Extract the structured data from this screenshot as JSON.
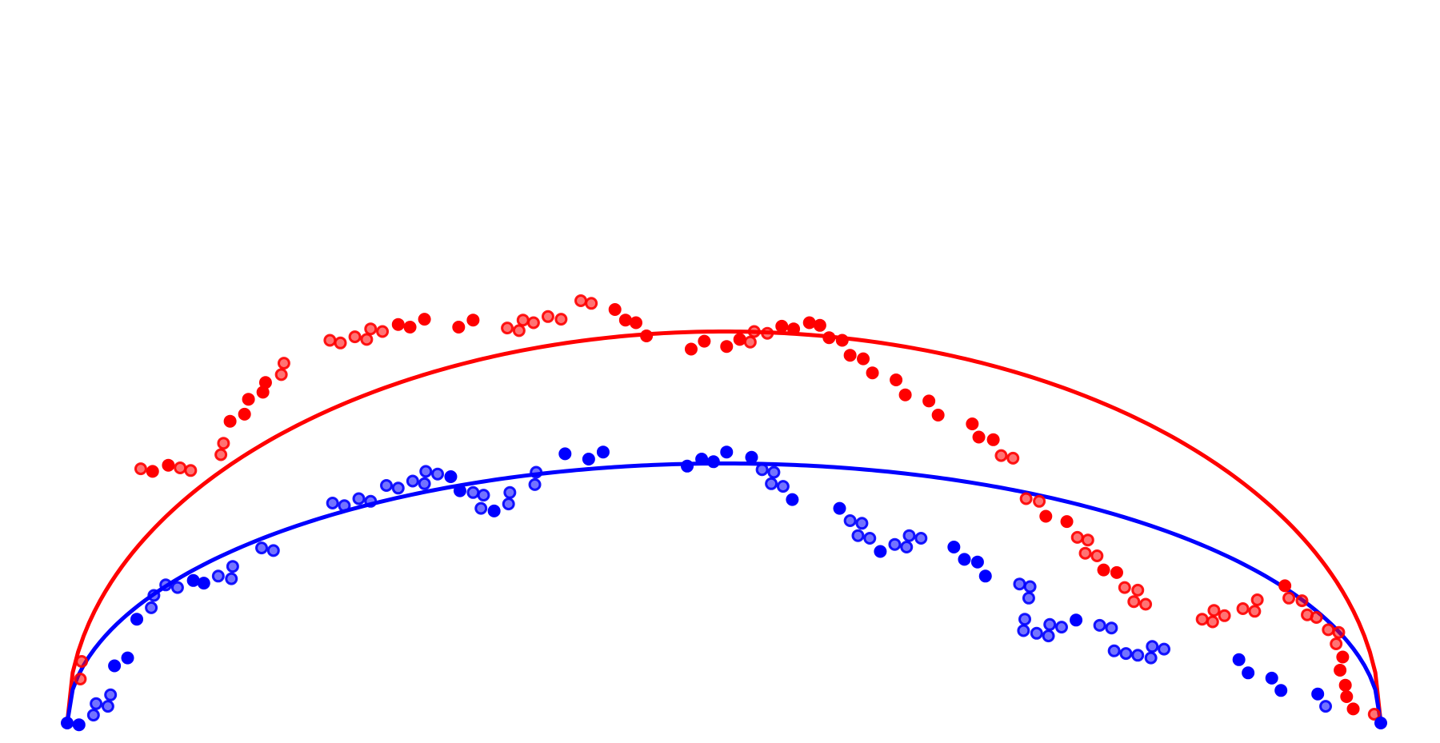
{
  "chart_data": {
    "type": "scatter",
    "title": "",
    "xlabel": "",
    "ylabel": "",
    "xlim": [
      0,
      1
    ],
    "ylim": [
      0,
      0.8
    ],
    "grid": false,
    "axes_visible": false,
    "legend": "none",
    "series": [
      {
        "color": "#ff0000",
        "curve_peak": 0.445,
        "points": [
          {
            "x": 0.011,
            "y": 0.07,
            "hollow": true
          },
          {
            "x": 0.01,
            "y": 0.05,
            "hollow": true
          },
          {
            "x": 0.056,
            "y": 0.289,
            "hollow": true
          },
          {
            "x": 0.065,
            "y": 0.286,
            "hollow": false
          },
          {
            "x": 0.077,
            "y": 0.293,
            "hollow": false
          },
          {
            "x": 0.086,
            "y": 0.29,
            "hollow": true
          },
          {
            "x": 0.094,
            "y": 0.287,
            "hollow": true
          },
          {
            "x": 0.117,
            "y": 0.305,
            "hollow": true
          },
          {
            "x": 0.119,
            "y": 0.318,
            "hollow": true
          },
          {
            "x": 0.124,
            "y": 0.343,
            "hollow": false
          },
          {
            "x": 0.135,
            "y": 0.351,
            "hollow": false
          },
          {
            "x": 0.138,
            "y": 0.368,
            "hollow": false
          },
          {
            "x": 0.149,
            "y": 0.376,
            "hollow": false
          },
          {
            "x": 0.151,
            "y": 0.387,
            "hollow": false
          },
          {
            "x": 0.163,
            "y": 0.396,
            "hollow": true
          },
          {
            "x": 0.165,
            "y": 0.409,
            "hollow": true
          },
          {
            "x": 0.2,
            "y": 0.435,
            "hollow": true
          },
          {
            "x": 0.208,
            "y": 0.432,
            "hollow": true
          },
          {
            "x": 0.219,
            "y": 0.439,
            "hollow": true
          },
          {
            "x": 0.228,
            "y": 0.436,
            "hollow": true
          },
          {
            "x": 0.231,
            "y": 0.448,
            "hollow": true
          },
          {
            "x": 0.24,
            "y": 0.445,
            "hollow": true
          },
          {
            "x": 0.252,
            "y": 0.453,
            "hollow": false
          },
          {
            "x": 0.261,
            "y": 0.45,
            "hollow": false
          },
          {
            "x": 0.272,
            "y": 0.459,
            "hollow": false
          },
          {
            "x": 0.298,
            "y": 0.45,
            "hollow": false
          },
          {
            "x": 0.309,
            "y": 0.458,
            "hollow": false
          },
          {
            "x": 0.335,
            "y": 0.449,
            "hollow": true
          },
          {
            "x": 0.344,
            "y": 0.446,
            "hollow": true
          },
          {
            "x": 0.347,
            "y": 0.458,
            "hollow": true
          },
          {
            "x": 0.355,
            "y": 0.455,
            "hollow": true
          },
          {
            "x": 0.366,
            "y": 0.462,
            "hollow": true
          },
          {
            "x": 0.376,
            "y": 0.459,
            "hollow": true
          },
          {
            "x": 0.391,
            "y": 0.48,
            "hollow": true
          },
          {
            "x": 0.399,
            "y": 0.477,
            "hollow": true
          },
          {
            "x": 0.417,
            "y": 0.47,
            "hollow": false
          },
          {
            "x": 0.425,
            "y": 0.458,
            "hollow": false
          },
          {
            "x": 0.433,
            "y": 0.455,
            "hollow": false
          },
          {
            "x": 0.441,
            "y": 0.44,
            "hollow": false
          },
          {
            "x": 0.475,
            "y": 0.425,
            "hollow": false
          },
          {
            "x": 0.485,
            "y": 0.434,
            "hollow": false
          },
          {
            "x": 0.502,
            "y": 0.428,
            "hollow": false
          },
          {
            "x": 0.512,
            "y": 0.436,
            "hollow": false
          },
          {
            "x": 0.52,
            "y": 0.433,
            "hollow": true
          },
          {
            "x": 0.523,
            "y": 0.445,
            "hollow": true
          },
          {
            "x": 0.533,
            "y": 0.443,
            "hollow": true
          },
          {
            "x": 0.544,
            "y": 0.451,
            "hollow": false
          },
          {
            "x": 0.553,
            "y": 0.448,
            "hollow": false
          },
          {
            "x": 0.565,
            "y": 0.455,
            "hollow": false
          },
          {
            "x": 0.573,
            "y": 0.452,
            "hollow": false
          },
          {
            "x": 0.58,
            "y": 0.438,
            "hollow": false
          },
          {
            "x": 0.59,
            "y": 0.435,
            "hollow": false
          },
          {
            "x": 0.596,
            "y": 0.418,
            "hollow": false
          },
          {
            "x": 0.606,
            "y": 0.414,
            "hollow": false
          },
          {
            "x": 0.613,
            "y": 0.398,
            "hollow": false
          },
          {
            "x": 0.631,
            "y": 0.39,
            "hollow": false
          },
          {
            "x": 0.638,
            "y": 0.373,
            "hollow": false
          },
          {
            "x": 0.656,
            "y": 0.366,
            "hollow": false
          },
          {
            "x": 0.663,
            "y": 0.35,
            "hollow": false
          },
          {
            "x": 0.689,
            "y": 0.34,
            "hollow": false
          },
          {
            "x": 0.694,
            "y": 0.325,
            "hollow": false
          },
          {
            "x": 0.705,
            "y": 0.322,
            "hollow": false
          },
          {
            "x": 0.711,
            "y": 0.304,
            "hollow": true
          },
          {
            "x": 0.72,
            "y": 0.301,
            "hollow": true
          },
          {
            "x": 0.73,
            "y": 0.255,
            "hollow": true
          },
          {
            "x": 0.74,
            "y": 0.252,
            "hollow": true
          },
          {
            "x": 0.745,
            "y": 0.235,
            "hollow": false
          },
          {
            "x": 0.761,
            "y": 0.229,
            "hollow": false
          },
          {
            "x": 0.769,
            "y": 0.211,
            "hollow": true
          },
          {
            "x": 0.777,
            "y": 0.208,
            "hollow": true
          },
          {
            "x": 0.775,
            "y": 0.193,
            "hollow": true
          },
          {
            "x": 0.784,
            "y": 0.19,
            "hollow": true
          },
          {
            "x": 0.789,
            "y": 0.174,
            "hollow": false
          },
          {
            "x": 0.799,
            "y": 0.171,
            "hollow": false
          },
          {
            "x": 0.805,
            "y": 0.154,
            "hollow": true
          },
          {
            "x": 0.815,
            "y": 0.151,
            "hollow": true
          },
          {
            "x": 0.812,
            "y": 0.138,
            "hollow": true
          },
          {
            "x": 0.821,
            "y": 0.135,
            "hollow": true
          },
          {
            "x": 0.864,
            "y": 0.118,
            "hollow": true
          },
          {
            "x": 0.872,
            "y": 0.115,
            "hollow": true
          },
          {
            "x": 0.873,
            "y": 0.128,
            "hollow": true
          },
          {
            "x": 0.881,
            "y": 0.122,
            "hollow": true
          },
          {
            "x": 0.895,
            "y": 0.13,
            "hollow": true
          },
          {
            "x": 0.904,
            "y": 0.127,
            "hollow": true
          },
          {
            "x": 0.906,
            "y": 0.14,
            "hollow": true
          },
          {
            "x": 0.927,
            "y": 0.156,
            "hollow": false
          },
          {
            "x": 0.93,
            "y": 0.142,
            "hollow": true
          },
          {
            "x": 0.94,
            "y": 0.139,
            "hollow": true
          },
          {
            "x": 0.944,
            "y": 0.123,
            "hollow": true
          },
          {
            "x": 0.951,
            "y": 0.12,
            "hollow": true
          },
          {
            "x": 0.96,
            "y": 0.106,
            "hollow": true
          },
          {
            "x": 0.968,
            "y": 0.103,
            "hollow": true
          },
          {
            "x": 0.966,
            "y": 0.09,
            "hollow": true
          },
          {
            "x": 0.971,
            "y": 0.075,
            "hollow": false
          },
          {
            "x": 0.969,
            "y": 0.06,
            "hollow": false
          },
          {
            "x": 0.973,
            "y": 0.043,
            "hollow": false
          },
          {
            "x": 0.974,
            "y": 0.03,
            "hollow": false
          },
          {
            "x": 0.979,
            "y": 0.016,
            "hollow": false
          },
          {
            "x": 0.995,
            "y": 0.01,
            "hollow": true
          }
        ]
      },
      {
        "color": "#0000ff",
        "curve_peak": 0.295,
        "points": [
          {
            "x": 0.0,
            "y": 0.0,
            "hollow": false
          },
          {
            "x": 0.009,
            "y": -0.002,
            "hollow": false
          },
          {
            "x": 0.02,
            "y": 0.009,
            "hollow": true
          },
          {
            "x": 0.022,
            "y": 0.022,
            "hollow": true
          },
          {
            "x": 0.031,
            "y": 0.019,
            "hollow": true
          },
          {
            "x": 0.033,
            "y": 0.032,
            "hollow": true
          },
          {
            "x": 0.036,
            "y": 0.065,
            "hollow": false
          },
          {
            "x": 0.046,
            "y": 0.074,
            "hollow": false
          },
          {
            "x": 0.053,
            "y": 0.118,
            "hollow": false
          },
          {
            "x": 0.064,
            "y": 0.131,
            "hollow": true
          },
          {
            "x": 0.066,
            "y": 0.145,
            "hollow": true
          },
          {
            "x": 0.075,
            "y": 0.157,
            "hollow": true
          },
          {
            "x": 0.084,
            "y": 0.154,
            "hollow": true
          },
          {
            "x": 0.096,
            "y": 0.162,
            "hollow": false
          },
          {
            "x": 0.104,
            "y": 0.159,
            "hollow": false
          },
          {
            "x": 0.115,
            "y": 0.167,
            "hollow": true
          },
          {
            "x": 0.125,
            "y": 0.164,
            "hollow": true
          },
          {
            "x": 0.126,
            "y": 0.178,
            "hollow": true
          },
          {
            "x": 0.148,
            "y": 0.199,
            "hollow": true
          },
          {
            "x": 0.157,
            "y": 0.196,
            "hollow": true
          },
          {
            "x": 0.202,
            "y": 0.25,
            "hollow": true
          },
          {
            "x": 0.211,
            "y": 0.247,
            "hollow": true
          },
          {
            "x": 0.222,
            "y": 0.255,
            "hollow": true
          },
          {
            "x": 0.231,
            "y": 0.252,
            "hollow": true
          },
          {
            "x": 0.243,
            "y": 0.27,
            "hollow": true
          },
          {
            "x": 0.252,
            "y": 0.267,
            "hollow": true
          },
          {
            "x": 0.263,
            "y": 0.275,
            "hollow": true
          },
          {
            "x": 0.272,
            "y": 0.272,
            "hollow": true
          },
          {
            "x": 0.273,
            "y": 0.286,
            "hollow": true
          },
          {
            "x": 0.282,
            "y": 0.283,
            "hollow": true
          },
          {
            "x": 0.292,
            "y": 0.28,
            "hollow": false
          },
          {
            "x": 0.299,
            "y": 0.264,
            "hollow": false
          },
          {
            "x": 0.309,
            "y": 0.262,
            "hollow": true
          },
          {
            "x": 0.317,
            "y": 0.259,
            "hollow": true
          },
          {
            "x": 0.315,
            "y": 0.244,
            "hollow": true
          },
          {
            "x": 0.325,
            "y": 0.241,
            "hollow": false
          },
          {
            "x": 0.336,
            "y": 0.249,
            "hollow": true
          },
          {
            "x": 0.337,
            "y": 0.262,
            "hollow": true
          },
          {
            "x": 0.356,
            "y": 0.271,
            "hollow": true
          },
          {
            "x": 0.357,
            "y": 0.285,
            "hollow": true
          },
          {
            "x": 0.379,
            "y": 0.306,
            "hollow": false
          },
          {
            "x": 0.397,
            "y": 0.3,
            "hollow": false
          },
          {
            "x": 0.408,
            "y": 0.308,
            "hollow": false
          },
          {
            "x": 0.472,
            "y": 0.292,
            "hollow": false
          },
          {
            "x": 0.483,
            "y": 0.3,
            "hollow": false
          },
          {
            "x": 0.492,
            "y": 0.297,
            "hollow": false
          },
          {
            "x": 0.502,
            "y": 0.308,
            "hollow": false
          },
          {
            "x": 0.521,
            "y": 0.302,
            "hollow": false
          },
          {
            "x": 0.529,
            "y": 0.288,
            "hollow": true
          },
          {
            "x": 0.538,
            "y": 0.285,
            "hollow": true
          },
          {
            "x": 0.536,
            "y": 0.272,
            "hollow": true
          },
          {
            "x": 0.545,
            "y": 0.269,
            "hollow": true
          },
          {
            "x": 0.552,
            "y": 0.254,
            "hollow": false
          },
          {
            "x": 0.588,
            "y": 0.244,
            "hollow": false
          },
          {
            "x": 0.596,
            "y": 0.23,
            "hollow": true
          },
          {
            "x": 0.605,
            "y": 0.227,
            "hollow": true
          },
          {
            "x": 0.602,
            "y": 0.213,
            "hollow": true
          },
          {
            "x": 0.611,
            "y": 0.21,
            "hollow": true
          },
          {
            "x": 0.619,
            "y": 0.195,
            "hollow": false
          },
          {
            "x": 0.63,
            "y": 0.203,
            "hollow": true
          },
          {
            "x": 0.639,
            "y": 0.2,
            "hollow": true
          },
          {
            "x": 0.641,
            "y": 0.213,
            "hollow": true
          },
          {
            "x": 0.65,
            "y": 0.21,
            "hollow": true
          },
          {
            "x": 0.675,
            "y": 0.2,
            "hollow": false
          },
          {
            "x": 0.683,
            "y": 0.186,
            "hollow": false
          },
          {
            "x": 0.693,
            "y": 0.183,
            "hollow": false
          },
          {
            "x": 0.699,
            "y": 0.167,
            "hollow": false
          },
          {
            "x": 0.725,
            "y": 0.158,
            "hollow": true
          },
          {
            "x": 0.733,
            "y": 0.155,
            "hollow": true
          },
          {
            "x": 0.732,
            "y": 0.142,
            "hollow": true
          },
          {
            "x": 0.729,
            "y": 0.118,
            "hollow": true
          },
          {
            "x": 0.728,
            "y": 0.105,
            "hollow": true
          },
          {
            "x": 0.738,
            "y": 0.102,
            "hollow": true
          },
          {
            "x": 0.747,
            "y": 0.099,
            "hollow": true
          },
          {
            "x": 0.748,
            "y": 0.112,
            "hollow": true
          },
          {
            "x": 0.757,
            "y": 0.109,
            "hollow": true
          },
          {
            "x": 0.768,
            "y": 0.117,
            "hollow": false
          },
          {
            "x": 0.786,
            "y": 0.111,
            "hollow": true
          },
          {
            "x": 0.795,
            "y": 0.108,
            "hollow": true
          },
          {
            "x": 0.797,
            "y": 0.082,
            "hollow": true
          },
          {
            "x": 0.806,
            "y": 0.079,
            "hollow": true
          },
          {
            "x": 0.815,
            "y": 0.077,
            "hollow": true
          },
          {
            "x": 0.825,
            "y": 0.074,
            "hollow": true
          },
          {
            "x": 0.826,
            "y": 0.087,
            "hollow": true
          },
          {
            "x": 0.835,
            "y": 0.084,
            "hollow": true
          },
          {
            "x": 0.892,
            "y": 0.072,
            "hollow": false
          },
          {
            "x": 0.899,
            "y": 0.057,
            "hollow": false
          },
          {
            "x": 0.917,
            "y": 0.051,
            "hollow": false
          },
          {
            "x": 0.924,
            "y": 0.037,
            "hollow": false
          },
          {
            "x": 0.952,
            "y": 0.033,
            "hollow": false
          },
          {
            "x": 0.958,
            "y": 0.019,
            "hollow": true
          },
          {
            "x": 1.0,
            "y": 0.0,
            "hollow": false
          }
        ]
      }
    ]
  }
}
